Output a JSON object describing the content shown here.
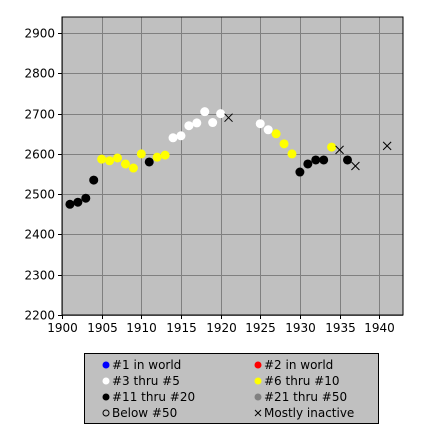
{
  "chart_data": {
    "type": "scatter",
    "title": "",
    "xlabel": "",
    "ylabel": "",
    "xlim": [
      1900,
      1943
    ],
    "ylim": [
      2200,
      2940
    ],
    "x_ticks": [
      1900,
      1905,
      1910,
      1915,
      1920,
      1925,
      1930,
      1935,
      1940
    ],
    "y_ticks": [
      2200,
      2300,
      2400,
      2500,
      2600,
      2700,
      2800,
      2900
    ],
    "grid": true,
    "legend_position": "bottom",
    "colors": {
      "plot_background": "#c0c0c0",
      "grid": "#808080",
      "rank_1": "#0000ff",
      "rank_2": "#ff0000",
      "rank_3_5": "#ffffff",
      "rank_6_10": "#ffff00",
      "rank_11_20": "#000000",
      "rank_21_50": "#808080"
    },
    "legend": [
      {
        "key": "rank_1",
        "label": "#1 in world",
        "marker": "dot"
      },
      {
        "key": "rank_2",
        "label": "#2 in world",
        "marker": "dot"
      },
      {
        "key": "rank_3_5",
        "label": "#3 thru #5",
        "marker": "dot"
      },
      {
        "key": "rank_6_10",
        "label": "#6 thru #10",
        "marker": "dot"
      },
      {
        "key": "rank_11_20",
        "label": "#11 thru #20",
        "marker": "dot"
      },
      {
        "key": "rank_21_50",
        "label": "#21 thru #50",
        "marker": "dot"
      },
      {
        "key": "below_50",
        "label": "Below #50",
        "marker": "circle"
      },
      {
        "key": "inactive",
        "label": "Mostly inactive",
        "marker": "cross"
      }
    ],
    "series": [
      {
        "key": "rank_11_20",
        "points": [
          [
            1901,
            2475
          ],
          [
            1902,
            2480
          ],
          [
            1903,
            2490
          ],
          [
            1904,
            2535
          ],
          [
            1911,
            2580
          ],
          [
            1930,
            2555
          ],
          [
            1931,
            2575
          ],
          [
            1932,
            2585
          ],
          [
            1933,
            2585
          ],
          [
            1936,
            2585
          ]
        ]
      },
      {
        "key": "rank_6_10",
        "points": [
          [
            1905,
            2587
          ],
          [
            1906,
            2583
          ],
          [
            1907,
            2590
          ],
          [
            1908,
            2575
          ],
          [
            1909,
            2565
          ],
          [
            1910,
            2600
          ],
          [
            1912,
            2592
          ],
          [
            1913,
            2597
          ],
          [
            1927,
            2650
          ],
          [
            1928,
            2625
          ],
          [
            1929,
            2600
          ],
          [
            1934,
            2617
          ]
        ]
      },
      {
        "key": "rank_3_5",
        "points": [
          [
            1914,
            2640
          ],
          [
            1915,
            2645
          ],
          [
            1916,
            2670
          ],
          [
            1917,
            2677
          ],
          [
            1918,
            2705
          ],
          [
            1919,
            2678
          ],
          [
            1920,
            2700
          ],
          [
            1925,
            2675
          ],
          [
            1926,
            2660
          ]
        ]
      },
      {
        "key": "inactive",
        "points": [
          [
            1921,
            2690
          ],
          [
            1935,
            2610
          ],
          [
            1937,
            2570
          ],
          [
            1941,
            2620
          ]
        ]
      }
    ]
  }
}
